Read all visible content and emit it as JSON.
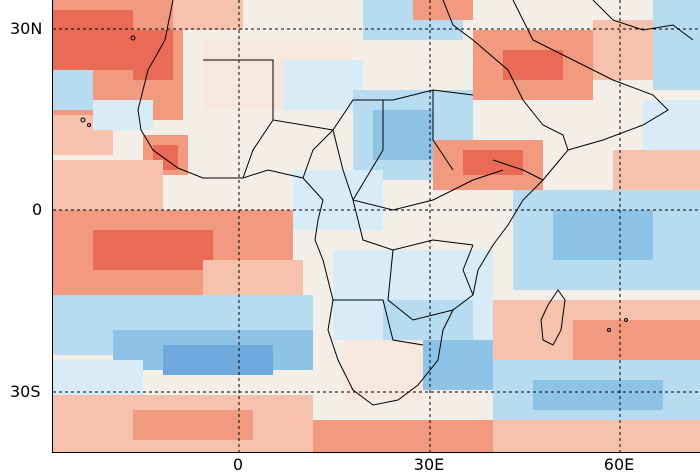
{
  "map": {
    "palette": {
      "strong_red": "#ea6b55",
      "red": "#f29a80",
      "light_red": "#f6c2ad",
      "pale": "#f6e7df",
      "neutral": "#f3efe8",
      "pale_blue": "#d8ecf7",
      "light_blue": "#b7dcf2",
      "blue": "#8ec3e8",
      "deep_blue": "#6fa8dc",
      "outline": "#000000",
      "grid": "#000000"
    },
    "lat_labels": [
      "30N",
      "0",
      "30S"
    ],
    "lon_labels": [
      "0",
      "30E",
      "60E"
    ]
  }
}
